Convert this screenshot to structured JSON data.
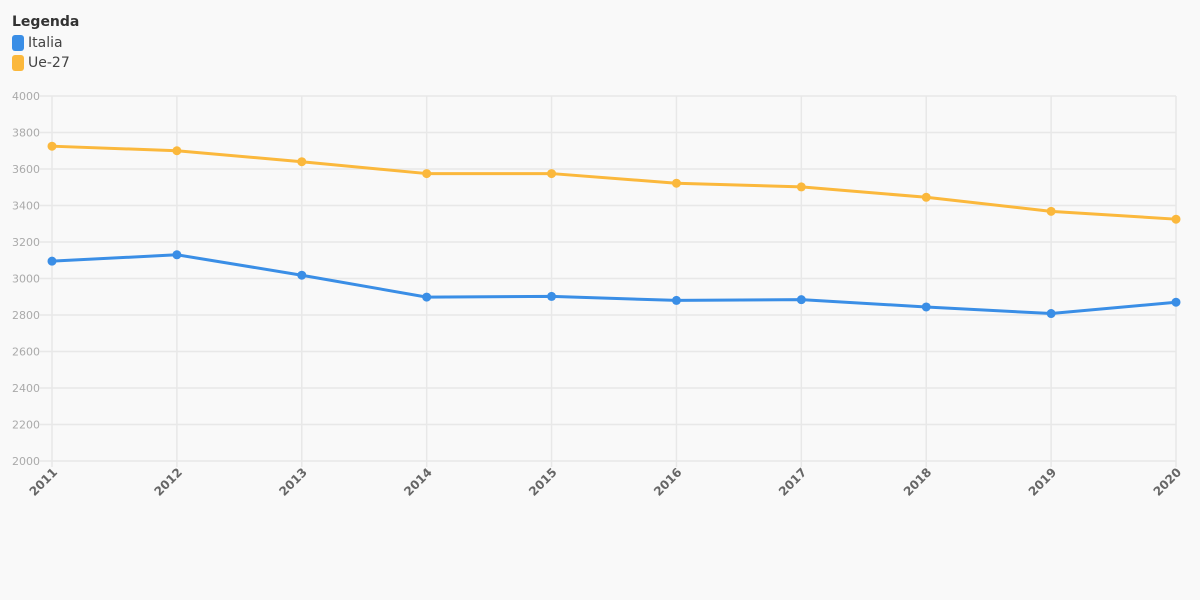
{
  "legend": {
    "title": "Legenda",
    "items": [
      {
        "label": "Italia",
        "color": "#3a8ee6"
      },
      {
        "label": "Ue-27",
        "color": "#fbb83c"
      }
    ]
  },
  "chart_data": {
    "type": "line",
    "x": [
      "2011",
      "2012",
      "2013",
      "2014",
      "2015",
      "2016",
      "2017",
      "2018",
      "2019",
      "2020"
    ],
    "series": [
      {
        "name": "Italia",
        "color": "#3a8ee6",
        "values": [
          3095,
          3130,
          3018,
          2898,
          2902,
          2880,
          2884,
          2844,
          2808,
          2870
        ]
      },
      {
        "name": "Ue-27",
        "color": "#fbb83c",
        "values": [
          3725,
          3700,
          3640,
          3575,
          3575,
          3522,
          3502,
          3445,
          3368,
          3325
        ]
      }
    ],
    "ylim": [
      2000,
      4000
    ],
    "yticks": [
      2000,
      2200,
      2400,
      2600,
      2800,
      3000,
      3200,
      3400,
      3600,
      3800,
      4000
    ],
    "grid": true,
    "legend_position": "top-left"
  }
}
